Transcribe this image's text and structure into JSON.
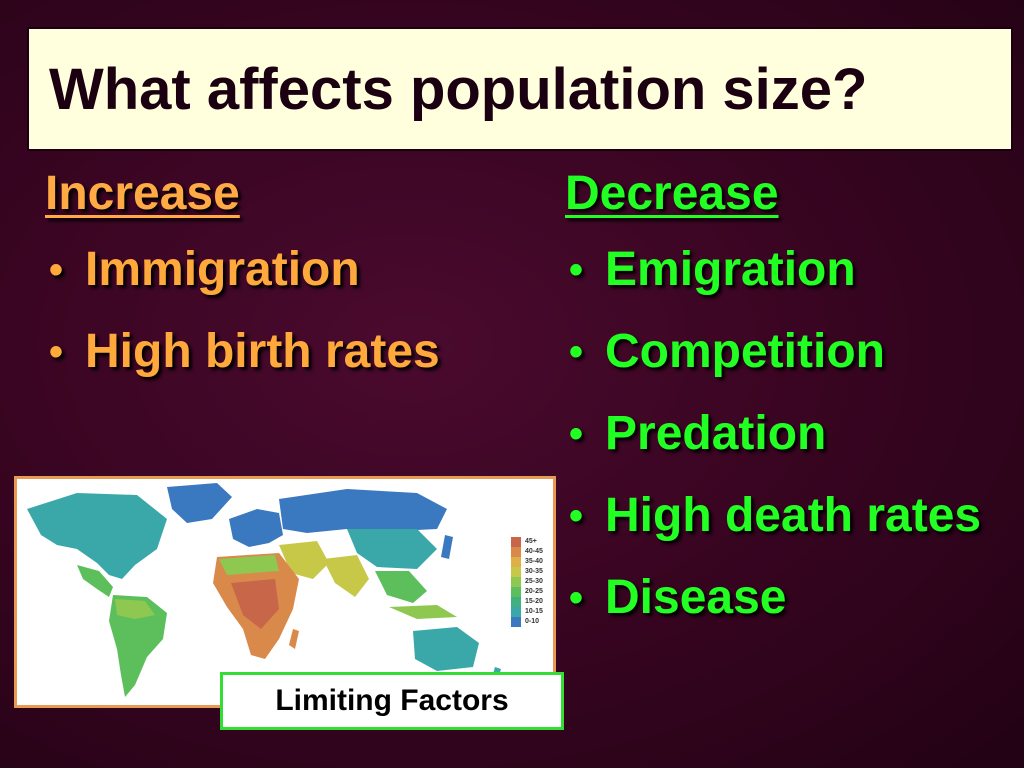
{
  "title": "What affects population size?",
  "increase": {
    "heading": "Increase",
    "items": [
      "Immigration",
      "High birth rates"
    ]
  },
  "decrease": {
    "heading": "Decrease",
    "items": [
      "Emigration",
      "Competition",
      "Predation",
      "High death rates",
      "Disease"
    ]
  },
  "map": {
    "legend": [
      {
        "label": "45+",
        "color": "#c8664a"
      },
      {
        "label": "40-45",
        "color": "#d9894a"
      },
      {
        "label": "35-40",
        "color": "#e0b048"
      },
      {
        "label": "30-35",
        "color": "#c8c848"
      },
      {
        "label": "25-30",
        "color": "#8ec850"
      },
      {
        "label": "20-25",
        "color": "#5cbf5c"
      },
      {
        "label": "15-20",
        "color": "#40b080"
      },
      {
        "label": "10-15",
        "color": "#3aa8a8"
      },
      {
        "label": "0-10",
        "color": "#3a78c0"
      }
    ]
  },
  "limiting_factors_label": "Limiting Factors",
  "colors": {
    "background": "#3a0522",
    "title_box": "#ffffdd",
    "increase": "#ffa93c",
    "decrease": "#22ff22"
  }
}
